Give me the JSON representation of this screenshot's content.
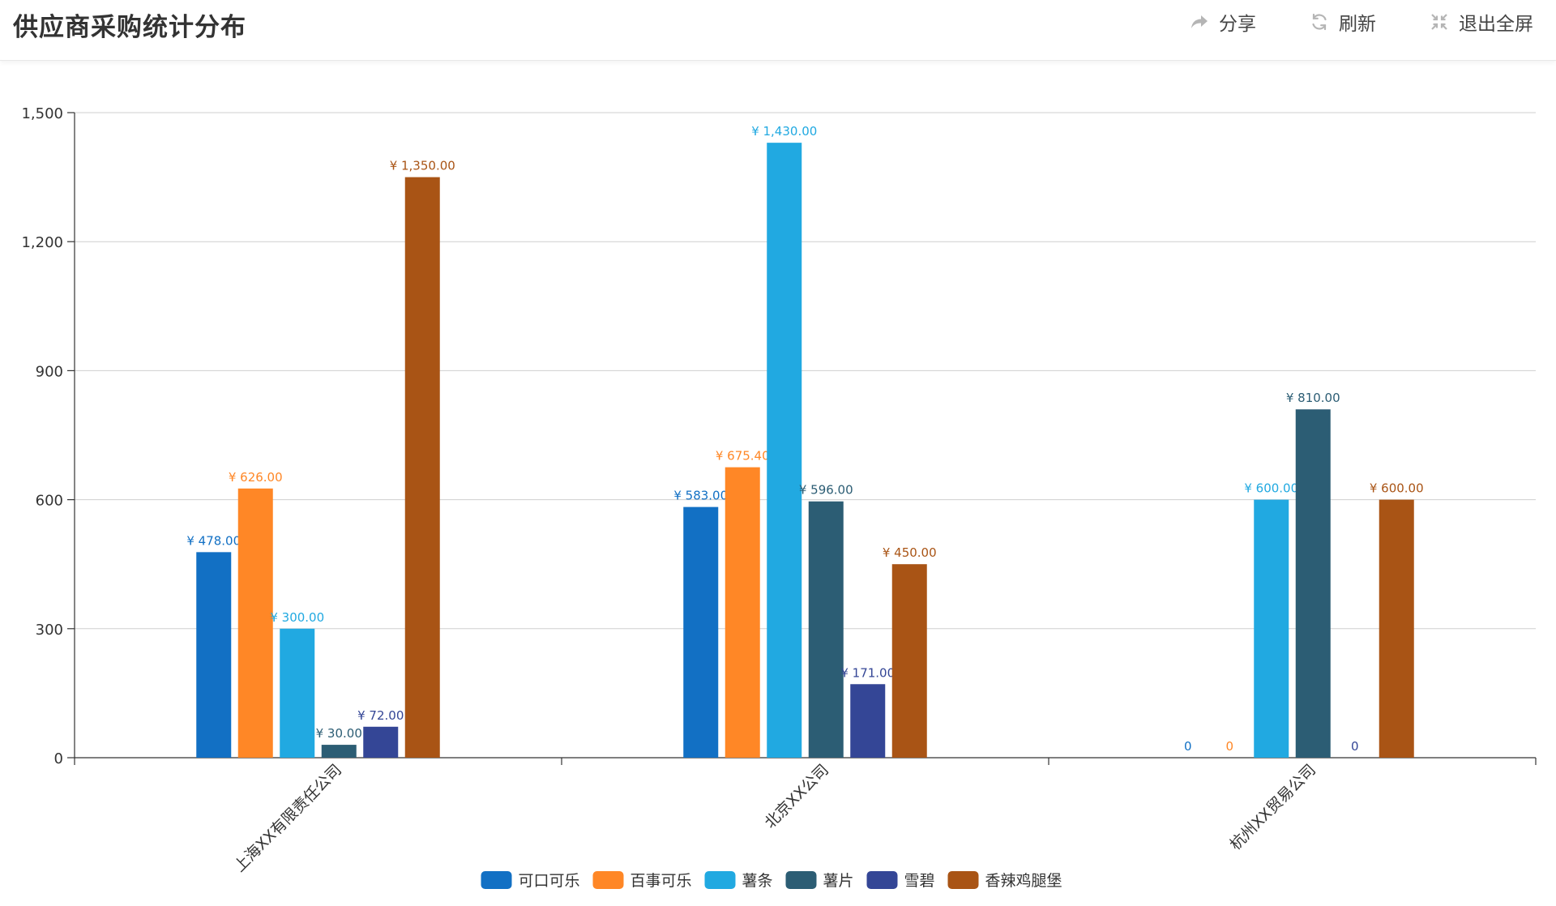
{
  "header": {
    "title": "供应商采购统计分布",
    "share_label": "分享",
    "refresh_label": "刷新",
    "exit_fullscreen_label": "退出全屏",
    "share_icon": "share-arrow-icon",
    "refresh_icon": "refresh-icon",
    "exit_fullscreen_icon": "compress-icon"
  },
  "chart_data": {
    "type": "bar",
    "title": "",
    "xlabel": "",
    "ylabel": "",
    "categories": [
      "上海XX有限责任公司",
      "北京XX公司",
      "杭州XX贸易公司"
    ],
    "ylim": [
      0,
      1500
    ],
    "yticks": [
      0,
      300,
      600,
      900,
      1200,
      1500
    ],
    "ytick_labels": [
      "0",
      "300",
      "600",
      "900",
      "1,200",
      "1,500"
    ],
    "grid": true,
    "legend_position": "bottom-center",
    "label_prefix": "¥ ",
    "series": [
      {
        "name": "可口可乐",
        "color": "#1270C4",
        "values": [
          478,
          583,
          0
        ],
        "labels": [
          "¥ 478.00",
          "¥ 583.00",
          "0"
        ]
      },
      {
        "name": "百事可乐",
        "color": "#FF8726",
        "values": [
          626,
          675.4,
          0
        ],
        "labels": [
          "¥ 626.00",
          "¥ 675.40",
          "0"
        ]
      },
      {
        "name": "薯条",
        "color": "#21A9E1",
        "values": [
          300,
          1430,
          600
        ],
        "labels": [
          "¥ 300.00",
          "¥ 1,430.00",
          "¥ 600.00"
        ]
      },
      {
        "name": "薯片",
        "color": "#2C5D74",
        "values": [
          30,
          596,
          810
        ],
        "labels": [
          "¥ 30.00",
          "¥ 596.00",
          "¥ 810.00"
        ]
      },
      {
        "name": "雪碧",
        "color": "#344696",
        "values": [
          72,
          171,
          0
        ],
        "labels": [
          "¥ 72.00",
          "¥ 171.00",
          "0"
        ]
      },
      {
        "name": "香辣鸡腿堡",
        "color": "#A95415",
        "values": [
          1350,
          450,
          600
        ],
        "labels": [
          "¥ 1,350.00",
          "¥ 450.00",
          "¥ 600.00"
        ]
      }
    ]
  }
}
